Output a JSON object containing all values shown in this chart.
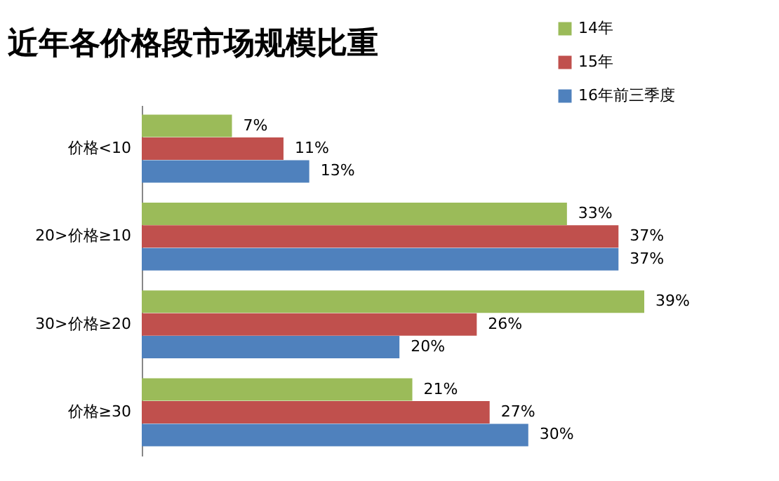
{
  "chart_data": {
    "type": "bar",
    "orientation": "horizontal",
    "title": "近年各价格段市场规模比重",
    "categories": [
      "价格<10",
      "20>价格≥10",
      "30>价格≥20",
      "价格≥30"
    ],
    "series": [
      {
        "name": "14年",
        "color": "#9bbb59",
        "values": [
          7,
          33,
          39,
          21
        ],
        "value_labels": [
          "7%",
          "33%",
          "39%",
          "21%"
        ]
      },
      {
        "name": "15年",
        "color": "#c0504d",
        "values": [
          11,
          37,
          26,
          27
        ],
        "value_labels": [
          "11%",
          "37%",
          "26%",
          "27%"
        ]
      },
      {
        "name": "16年前三季度",
        "color": "#4f81bd",
        "values": [
          13,
          37,
          20,
          30
        ],
        "value_labels": [
          "13%",
          "37%",
          "20%",
          "30%"
        ]
      }
    ],
    "tick_labels": "y",
    "grid": false,
    "legend": "top right"
  }
}
